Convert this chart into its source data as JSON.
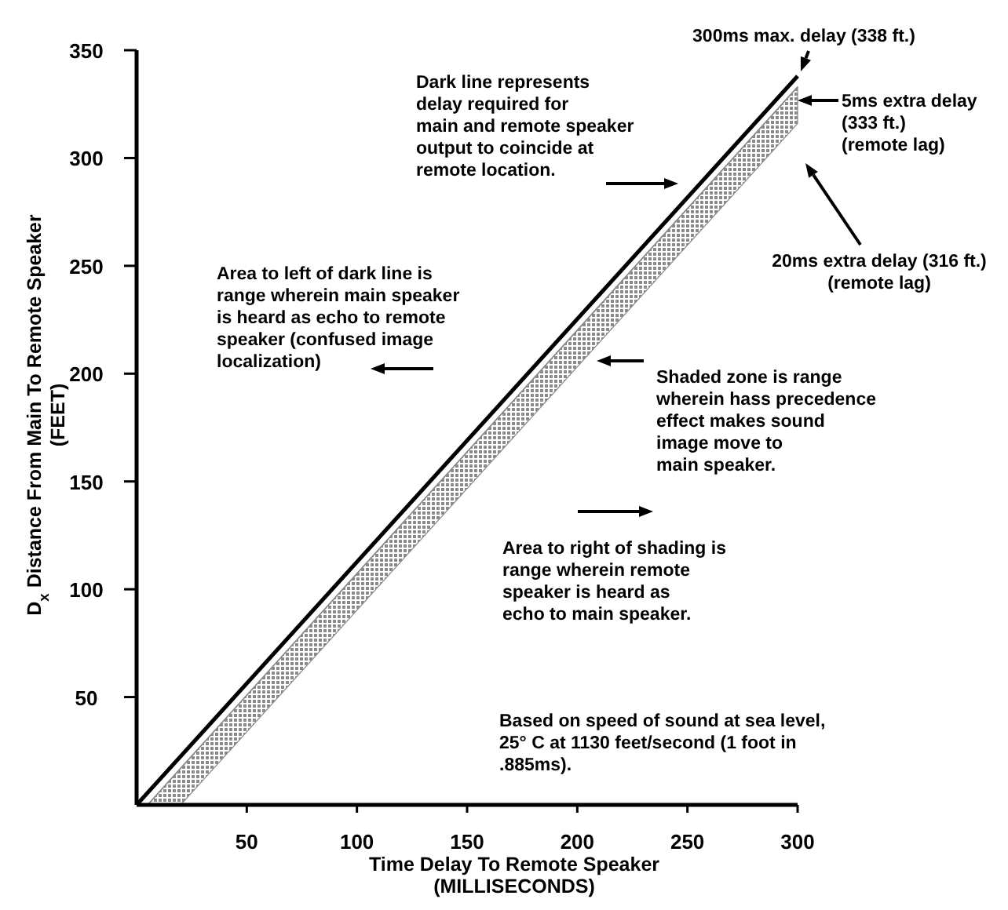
{
  "chart_data": {
    "type": "line",
    "xlabel": "Time Delay To Remote Speaker\n(MILLISECONDS)",
    "ylabel": "D$_{x}$ Distance From Main To Remote Speaker\n(FEET)",
    "xlim": [
      0,
      300
    ],
    "xticks": [
      50,
      100,
      150,
      200,
      250,
      300
    ],
    "ylim": [
      0,
      350
    ],
    "yticks": [
      50,
      100,
      150,
      200,
      250,
      300,
      350
    ],
    "grid": false,
    "series": [
      {
        "color": "#8a8a8a",
        "x": [
          5,
          20,
          300
        ],
        "values": [
          0,
          17,
          333
        ],
        "lower": [
          0,
          0,
          316
        ],
        "upper": [
          0,
          17,
          333
        ]
      },
      {
        "color": "#000000",
        "x": [
          0,
          300
        ],
        "values": [
          0,
          338
        ]
      }
    ],
    "annotations": [
      "Dark line represents\ndelay required for\nmain and remote speaker\noutput to coincide at\nremote location.",
      "Area to left of dark line is\nrange wherein main speaker\nis heard as echo to remote\nspeaker (confused image\nlocalization)",
      "Shaded zone is range\nwherein hass precedence\neffect makes sound\nimage move to\nmain speaker.",
      "Area to right of shading is\nrange wherein remote\nspeaker is heard as\necho to main speaker.",
      "Based on speed of sound at sea level,\n25° C at 1130 feet/second (1 foot in\n.885ms).",
      {
        "text": "300ms max. delay (338 ft.)",
        "x": 300,
        "y": 338
      },
      "5ms extra delay\n(333 ft.)\n(remote lag)",
      "20ms extra delay (316 ft.)\n(remote lag)"
    ]
  }
}
